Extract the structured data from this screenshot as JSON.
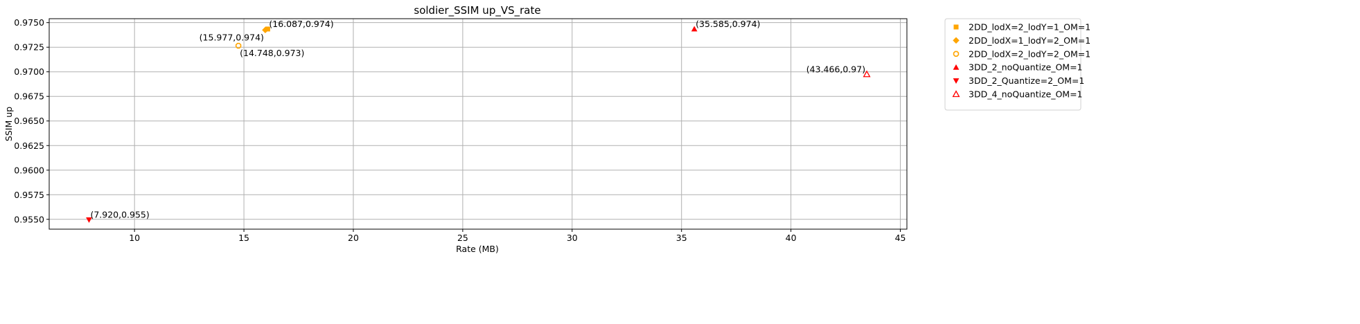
{
  "chart_data": {
    "type": "scatter",
    "title": "soldier_SSIM up_VS_rate",
    "xlabel": "Rate (MB)",
    "ylabel": "SSIM up",
    "xlim": [
      6.1,
      45.3
    ],
    "ylim": [
      0.954,
      0.9754
    ],
    "xticks": [
      10,
      15,
      20,
      25,
      30,
      35,
      40,
      45
    ],
    "yticks": [
      0.955,
      0.9575,
      0.96,
      0.9625,
      0.965,
      0.9675,
      0.97,
      0.9725,
      0.975
    ],
    "ytick_labels": [
      "0.9550",
      "0.9575",
      "0.9600",
      "0.9625",
      "0.9650",
      "0.9675",
      "0.9700",
      "0.9725",
      "0.9750"
    ],
    "grid": true,
    "legend_position": "outside-upper-right",
    "series": [
      {
        "name": "2DD_lodX=2_lodY=1_OM=1",
        "marker": "square",
        "color": "#ffa500",
        "filled": true,
        "points": [
          {
            "x": 16.087,
            "y": 0.97435
          }
        ]
      },
      {
        "name": "2DD_lodX=1_lodY=2_OM=1",
        "marker": "diamond",
        "color": "#ffa500",
        "filled": true,
        "points": [
          {
            "x": 15.977,
            "y": 0.97425
          }
        ]
      },
      {
        "name": "2DD_lodX=2_lodY=2_OM=1",
        "marker": "octagon",
        "color": "#ffa500",
        "filled": false,
        "points": [
          {
            "x": 14.748,
            "y": 0.97265
          }
        ]
      },
      {
        "name": "3DD_2_noQuantize_OM=1",
        "marker": "triangle-up",
        "color": "#ff0000",
        "filled": true,
        "points": [
          {
            "x": 35.585,
            "y": 0.97435
          }
        ]
      },
      {
        "name": "3DD_2_Quantize=2_OM=1",
        "marker": "triangle-down",
        "color": "#ff0000",
        "filled": true,
        "points": [
          {
            "x": 7.92,
            "y": 0.95495
          }
        ]
      },
      {
        "name": "3DD_4_noQuantize_OM=1",
        "marker": "triangle-up",
        "color": "#ff0000",
        "filled": false,
        "points": [
          {
            "x": 43.466,
            "y": 0.96975
          }
        ]
      }
    ],
    "annotations": [
      {
        "text": "(16.087,0.974)",
        "x": 16.087,
        "y": 0.97435,
        "anchor": "start",
        "dy": "above"
      },
      {
        "text": "(15.977,0.974)",
        "x": 15.977,
        "y": 0.97425,
        "anchor": "end",
        "dy": "below"
      },
      {
        "text": "(14.748,0.973)",
        "x": 14.748,
        "y": 0.97265,
        "anchor": "start",
        "dy": "below"
      },
      {
        "text": "(35.585,0.974)",
        "x": 35.585,
        "y": 0.97435,
        "anchor": "start",
        "dy": "above"
      },
      {
        "text": "(43.466,0.97)",
        "x": 43.466,
        "y": 0.96975,
        "anchor": "end",
        "dy": "above"
      },
      {
        "text": "(7.920,0.955)",
        "x": 7.92,
        "y": 0.95495,
        "anchor": "start",
        "dy": "above"
      }
    ]
  }
}
